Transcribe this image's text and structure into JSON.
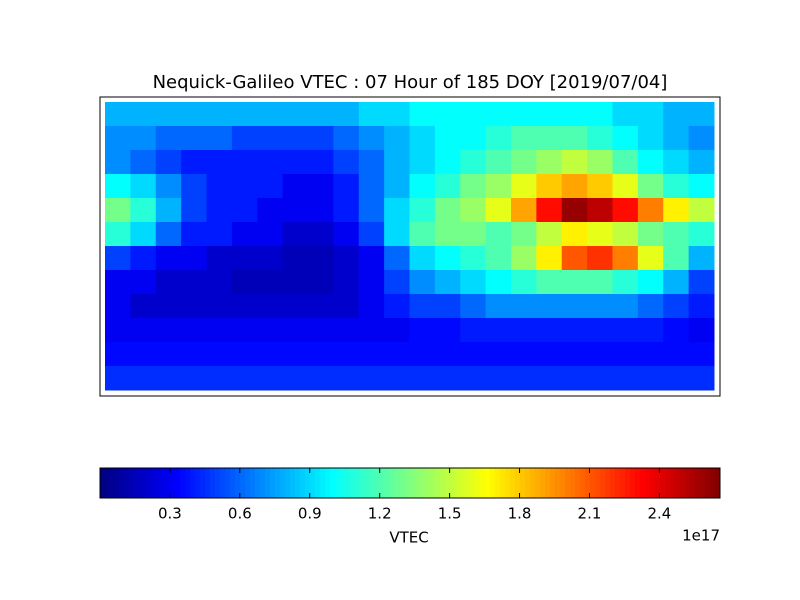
{
  "chart_data": {
    "type": "heatmap",
    "title": "Nequick-Galileo VTEC : 07 Hour of 185 DOY [2019/07/04]",
    "xlim": [
      -180,
      180
    ],
    "ylim": [
      -90,
      90
    ],
    "colormap": "jet",
    "z": [
      [
        0.8,
        0.8,
        0.8,
        0.8,
        0.8,
        0.8,
        0.8,
        0.8,
        0.8,
        0.8,
        0.9,
        0.9,
        1.0,
        1.0,
        1.0,
        1.0,
        1.0,
        1.0,
        1.0,
        1.0,
        0.9,
        0.9,
        0.8,
        0.8
      ],
      [
        0.7,
        0.7,
        0.6,
        0.6,
        0.6,
        0.5,
        0.5,
        0.5,
        0.5,
        0.6,
        0.7,
        0.8,
        0.9,
        1.0,
        1.0,
        1.1,
        1.2,
        1.2,
        1.2,
        1.1,
        1.0,
        0.9,
        0.8,
        0.7
      ],
      [
        0.7,
        0.6,
        0.5,
        0.4,
        0.4,
        0.4,
        0.4,
        0.4,
        0.4,
        0.5,
        0.6,
        0.8,
        0.9,
        1.0,
        1.1,
        1.2,
        1.3,
        1.4,
        1.5,
        1.4,
        1.2,
        1.0,
        0.9,
        0.8
      ],
      [
        1.0,
        0.9,
        0.7,
        0.5,
        0.4,
        0.4,
        0.4,
        0.3,
        0.3,
        0.4,
        0.6,
        0.8,
        1.0,
        1.1,
        1.3,
        1.4,
        1.6,
        1.8,
        1.9,
        1.8,
        1.6,
        1.3,
        1.1,
        1.0
      ],
      [
        1.3,
        1.1,
        0.8,
        0.5,
        0.4,
        0.4,
        0.3,
        0.3,
        0.3,
        0.4,
        0.6,
        0.9,
        1.1,
        1.3,
        1.4,
        1.6,
        1.9,
        2.3,
        2.6,
        2.5,
        2.3,
        2.0,
        1.7,
        1.5
      ],
      [
        1.1,
        0.9,
        0.6,
        0.4,
        0.4,
        0.3,
        0.3,
        0.2,
        0.2,
        0.3,
        0.5,
        0.9,
        1.2,
        1.3,
        1.3,
        1.2,
        1.3,
        1.5,
        1.7,
        1.6,
        1.5,
        1.3,
        1.2,
        1.1
      ],
      [
        0.5,
        0.4,
        0.3,
        0.3,
        0.2,
        0.2,
        0.2,
        0.15,
        0.15,
        0.2,
        0.3,
        0.6,
        0.9,
        1.0,
        1.1,
        1.2,
        1.4,
        1.7,
        2.1,
        2.2,
        2.0,
        1.6,
        1.2,
        0.8
      ],
      [
        0.3,
        0.3,
        0.2,
        0.2,
        0.2,
        0.15,
        0.15,
        0.15,
        0.15,
        0.2,
        0.3,
        0.5,
        0.7,
        0.8,
        0.9,
        1.0,
        1.1,
        1.2,
        1.2,
        1.2,
        1.1,
        1.0,
        0.8,
        0.5
      ],
      [
        0.3,
        0.2,
        0.2,
        0.2,
        0.2,
        0.2,
        0.2,
        0.2,
        0.2,
        0.2,
        0.3,
        0.4,
        0.5,
        0.5,
        0.6,
        0.7,
        0.7,
        0.7,
        0.7,
        0.7,
        0.7,
        0.6,
        0.5,
        0.4
      ],
      [
        0.3,
        0.3,
        0.3,
        0.3,
        0.3,
        0.3,
        0.3,
        0.3,
        0.3,
        0.3,
        0.3,
        0.3,
        0.35,
        0.35,
        0.4,
        0.4,
        0.4,
        0.4,
        0.4,
        0.4,
        0.4,
        0.4,
        0.35,
        0.3
      ],
      [
        0.35,
        0.35,
        0.35,
        0.35,
        0.35,
        0.35,
        0.35,
        0.35,
        0.35,
        0.35,
        0.35,
        0.35,
        0.35,
        0.35,
        0.35,
        0.35,
        0.35,
        0.35,
        0.35,
        0.35,
        0.35,
        0.35,
        0.35,
        0.35
      ],
      [
        0.45,
        0.45,
        0.45,
        0.45,
        0.45,
        0.45,
        0.45,
        0.45,
        0.45,
        0.45,
        0.45,
        0.45,
        0.45,
        0.45,
        0.45,
        0.45,
        0.45,
        0.45,
        0.45,
        0.45,
        0.45,
        0.45,
        0.45,
        0.45
      ]
    ],
    "clim": [
      0.0,
      2.66
    ],
    "cticks": [
      0.3,
      0.6,
      0.9,
      1.2,
      1.5,
      1.8,
      2.1,
      2.4
    ],
    "colorbar_label": "VTEC",
    "colorbar_offset": "1e17"
  }
}
